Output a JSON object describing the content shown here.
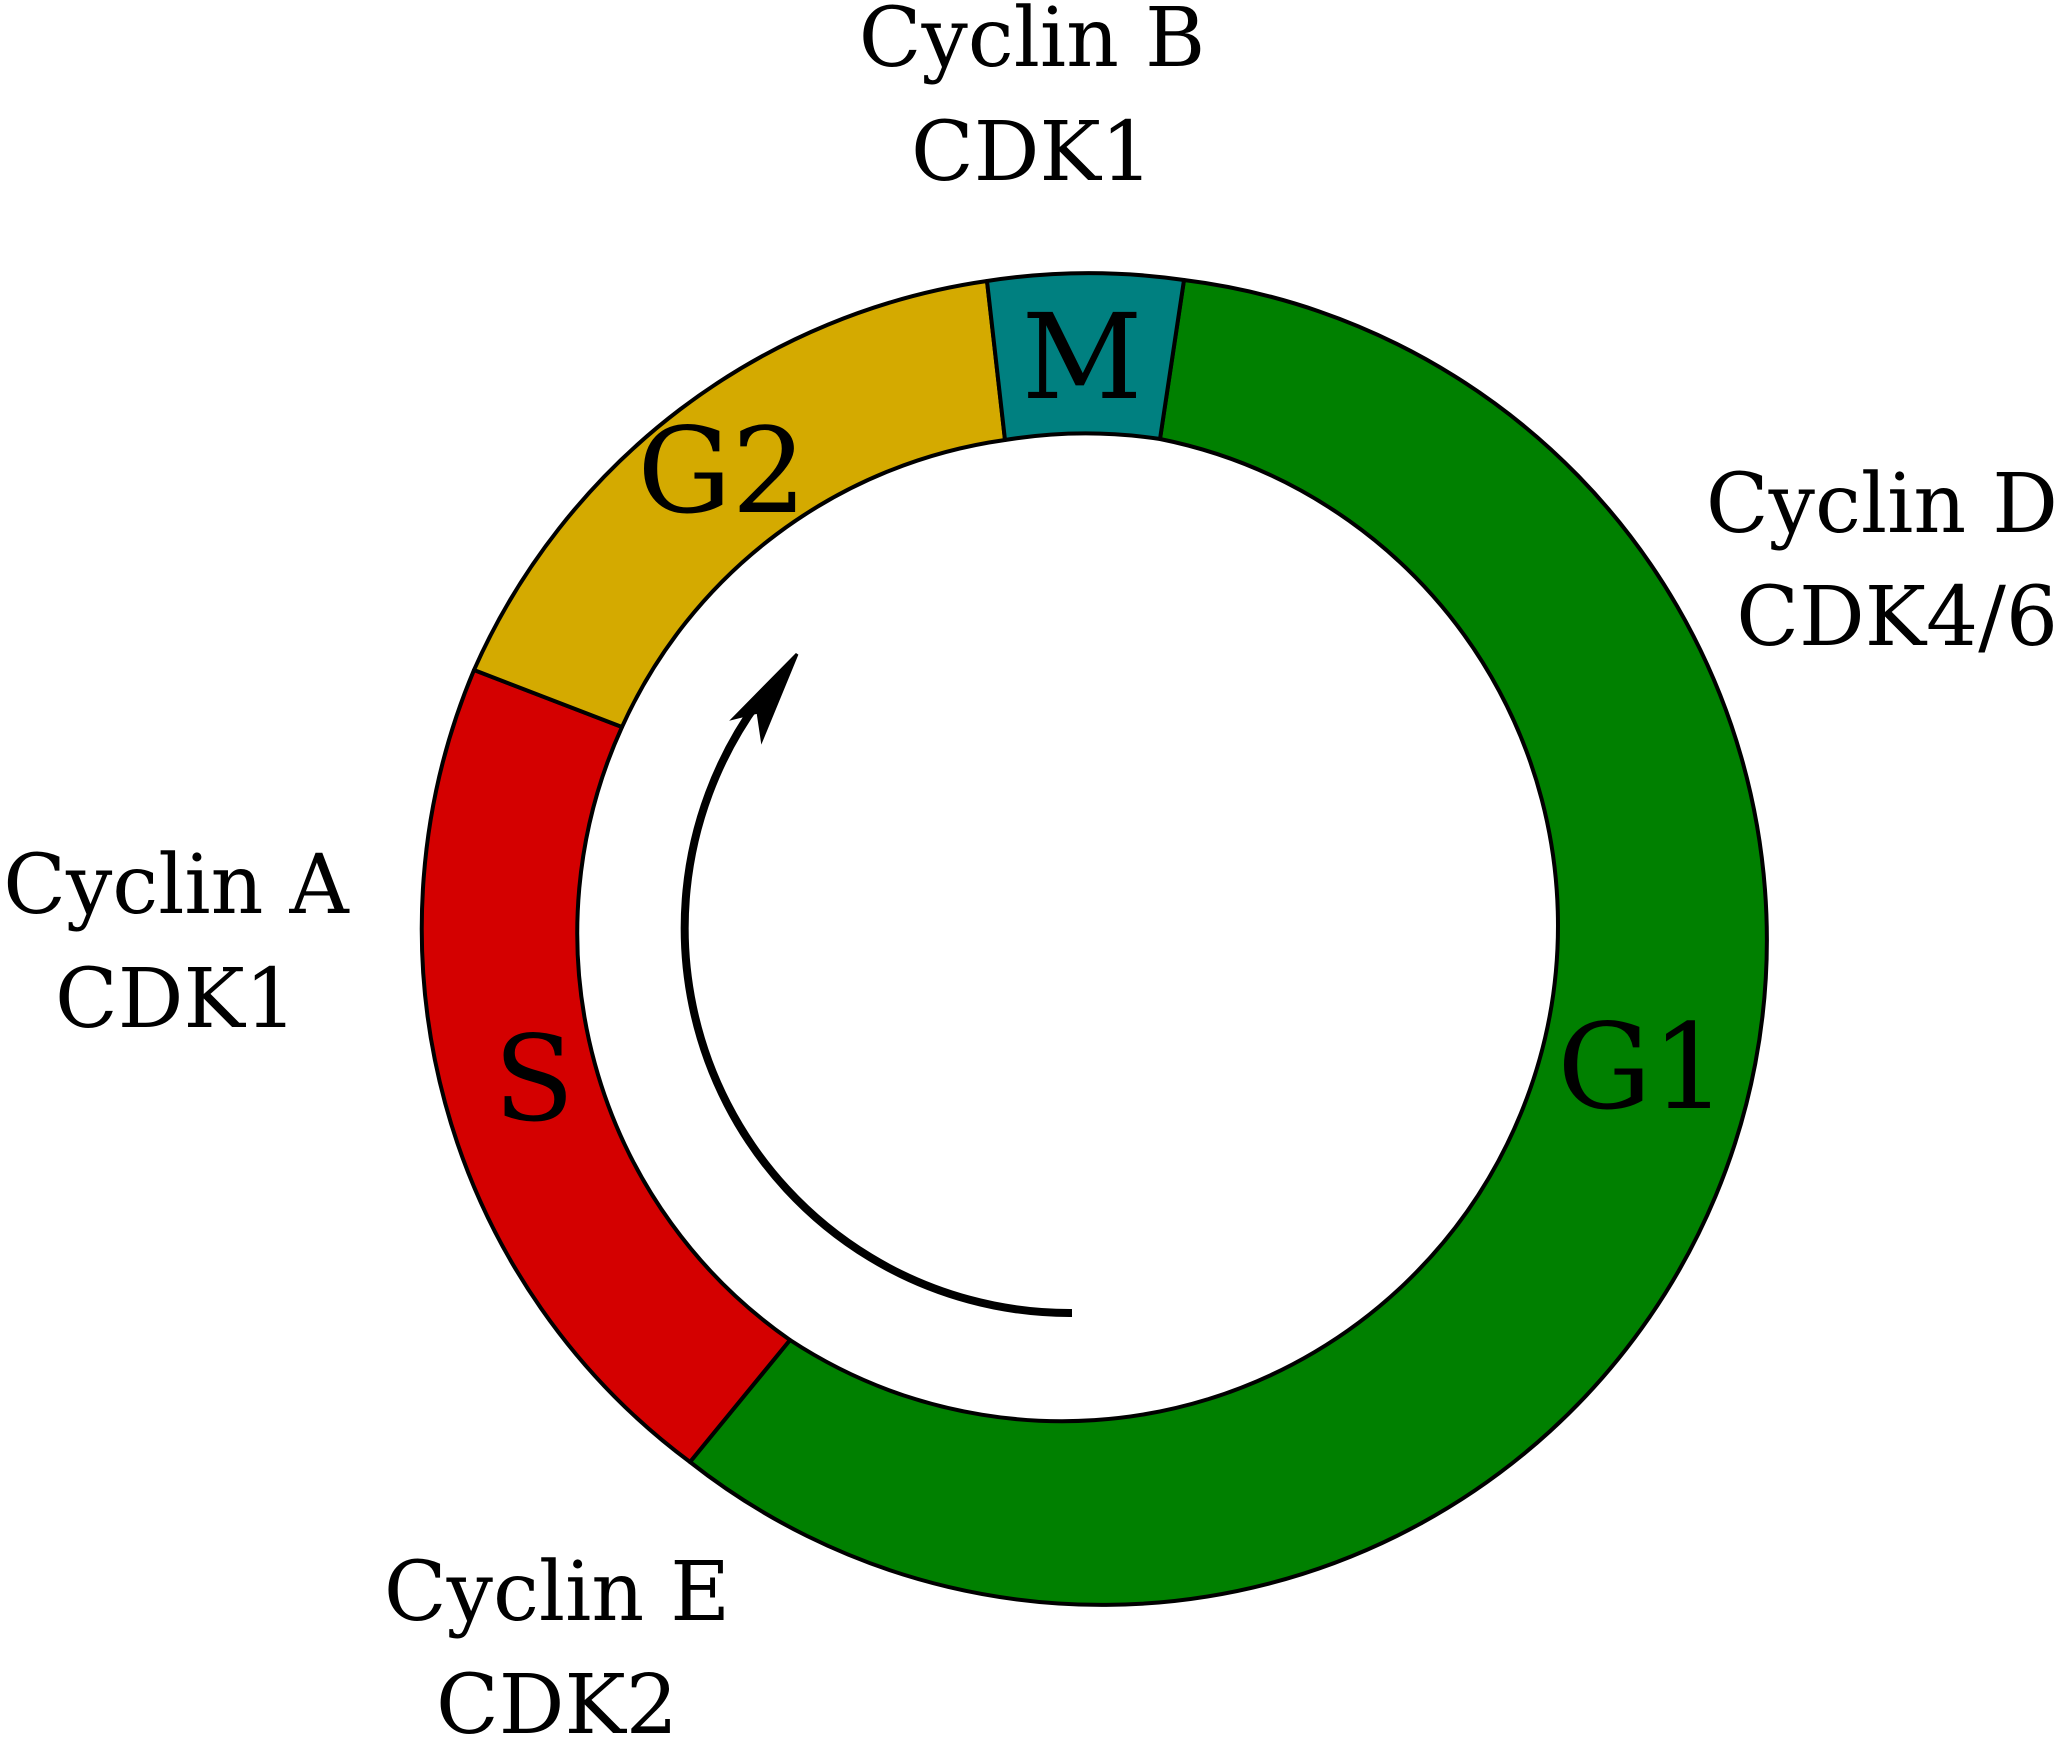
{
  "phases": [
    {
      "id": "g1",
      "label": "G1",
      "color": "#008000"
    },
    {
      "id": "s",
      "label": "S",
      "color": "#d40000"
    },
    {
      "id": "g2",
      "label": "G2",
      "color": "#d4aa00"
    },
    {
      "id": "m",
      "label": "M",
      "color": "#008080"
    }
  ],
  "complexes": [
    {
      "id": "m-complex",
      "cyclin": "Cyclin B",
      "cdk": "CDK1"
    },
    {
      "id": "g1-complex",
      "cyclin": "Cyclin D",
      "cdk": "CDK4/6"
    },
    {
      "id": "s-complex",
      "cyclin": "Cyclin A",
      "cdk": "CDK1"
    },
    {
      "id": "g1s-complex",
      "cyclin": "Cyclin E",
      "cdk": "CDK2"
    }
  ],
  "cycle_direction": "clockwise"
}
